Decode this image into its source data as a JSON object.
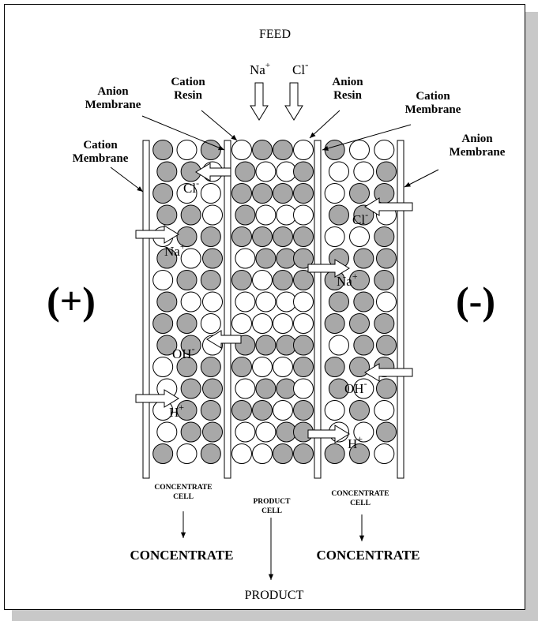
{
  "feed": "FEED",
  "feed_ions": [
    {
      "symbol": "Na",
      "charge": "+"
    },
    {
      "symbol": "Cl",
      "charge": "-"
    }
  ],
  "top_labels": [
    {
      "lines": [
        "Anion",
        "Membrane"
      ]
    },
    {
      "lines": [
        "Cation",
        "Resin"
      ]
    },
    {
      "lines": [
        "Anion",
        "Resin"
      ]
    },
    {
      "lines": [
        "Cation",
        "Membrane"
      ]
    },
    {
      "lines": [
        "Cation",
        "Membrane"
      ]
    },
    {
      "lines": [
        "Anion",
        "Membrane"
      ]
    }
  ],
  "electrodes": {
    "positive": "(+)",
    "negative": "(-)"
  },
  "left_ions": [
    {
      "symbol": "Cl",
      "charge": "-"
    },
    {
      "symbol": "Na",
      "charge": "+"
    },
    {
      "symbol": "OH",
      "charge": "-"
    },
    {
      "symbol": "H",
      "charge": "+"
    }
  ],
  "right_ions": [
    {
      "symbol": "Cl",
      "charge": "-"
    },
    {
      "symbol": "Na",
      "charge": "+"
    },
    {
      "symbol": "OH",
      "charge": "-"
    },
    {
      "symbol": "H",
      "charge": "+"
    }
  ],
  "cells": [
    {
      "lines": [
        "CONCENTRATE",
        "CELL"
      ]
    },
    {
      "lines": [
        "PRODUCT",
        "CELL"
      ]
    },
    {
      "lines": [
        "CONCENTRATE",
        "CELL"
      ]
    }
  ],
  "outputs": [
    "CONCENTRATE",
    "PRODUCT",
    "CONCENTRATE"
  ]
}
